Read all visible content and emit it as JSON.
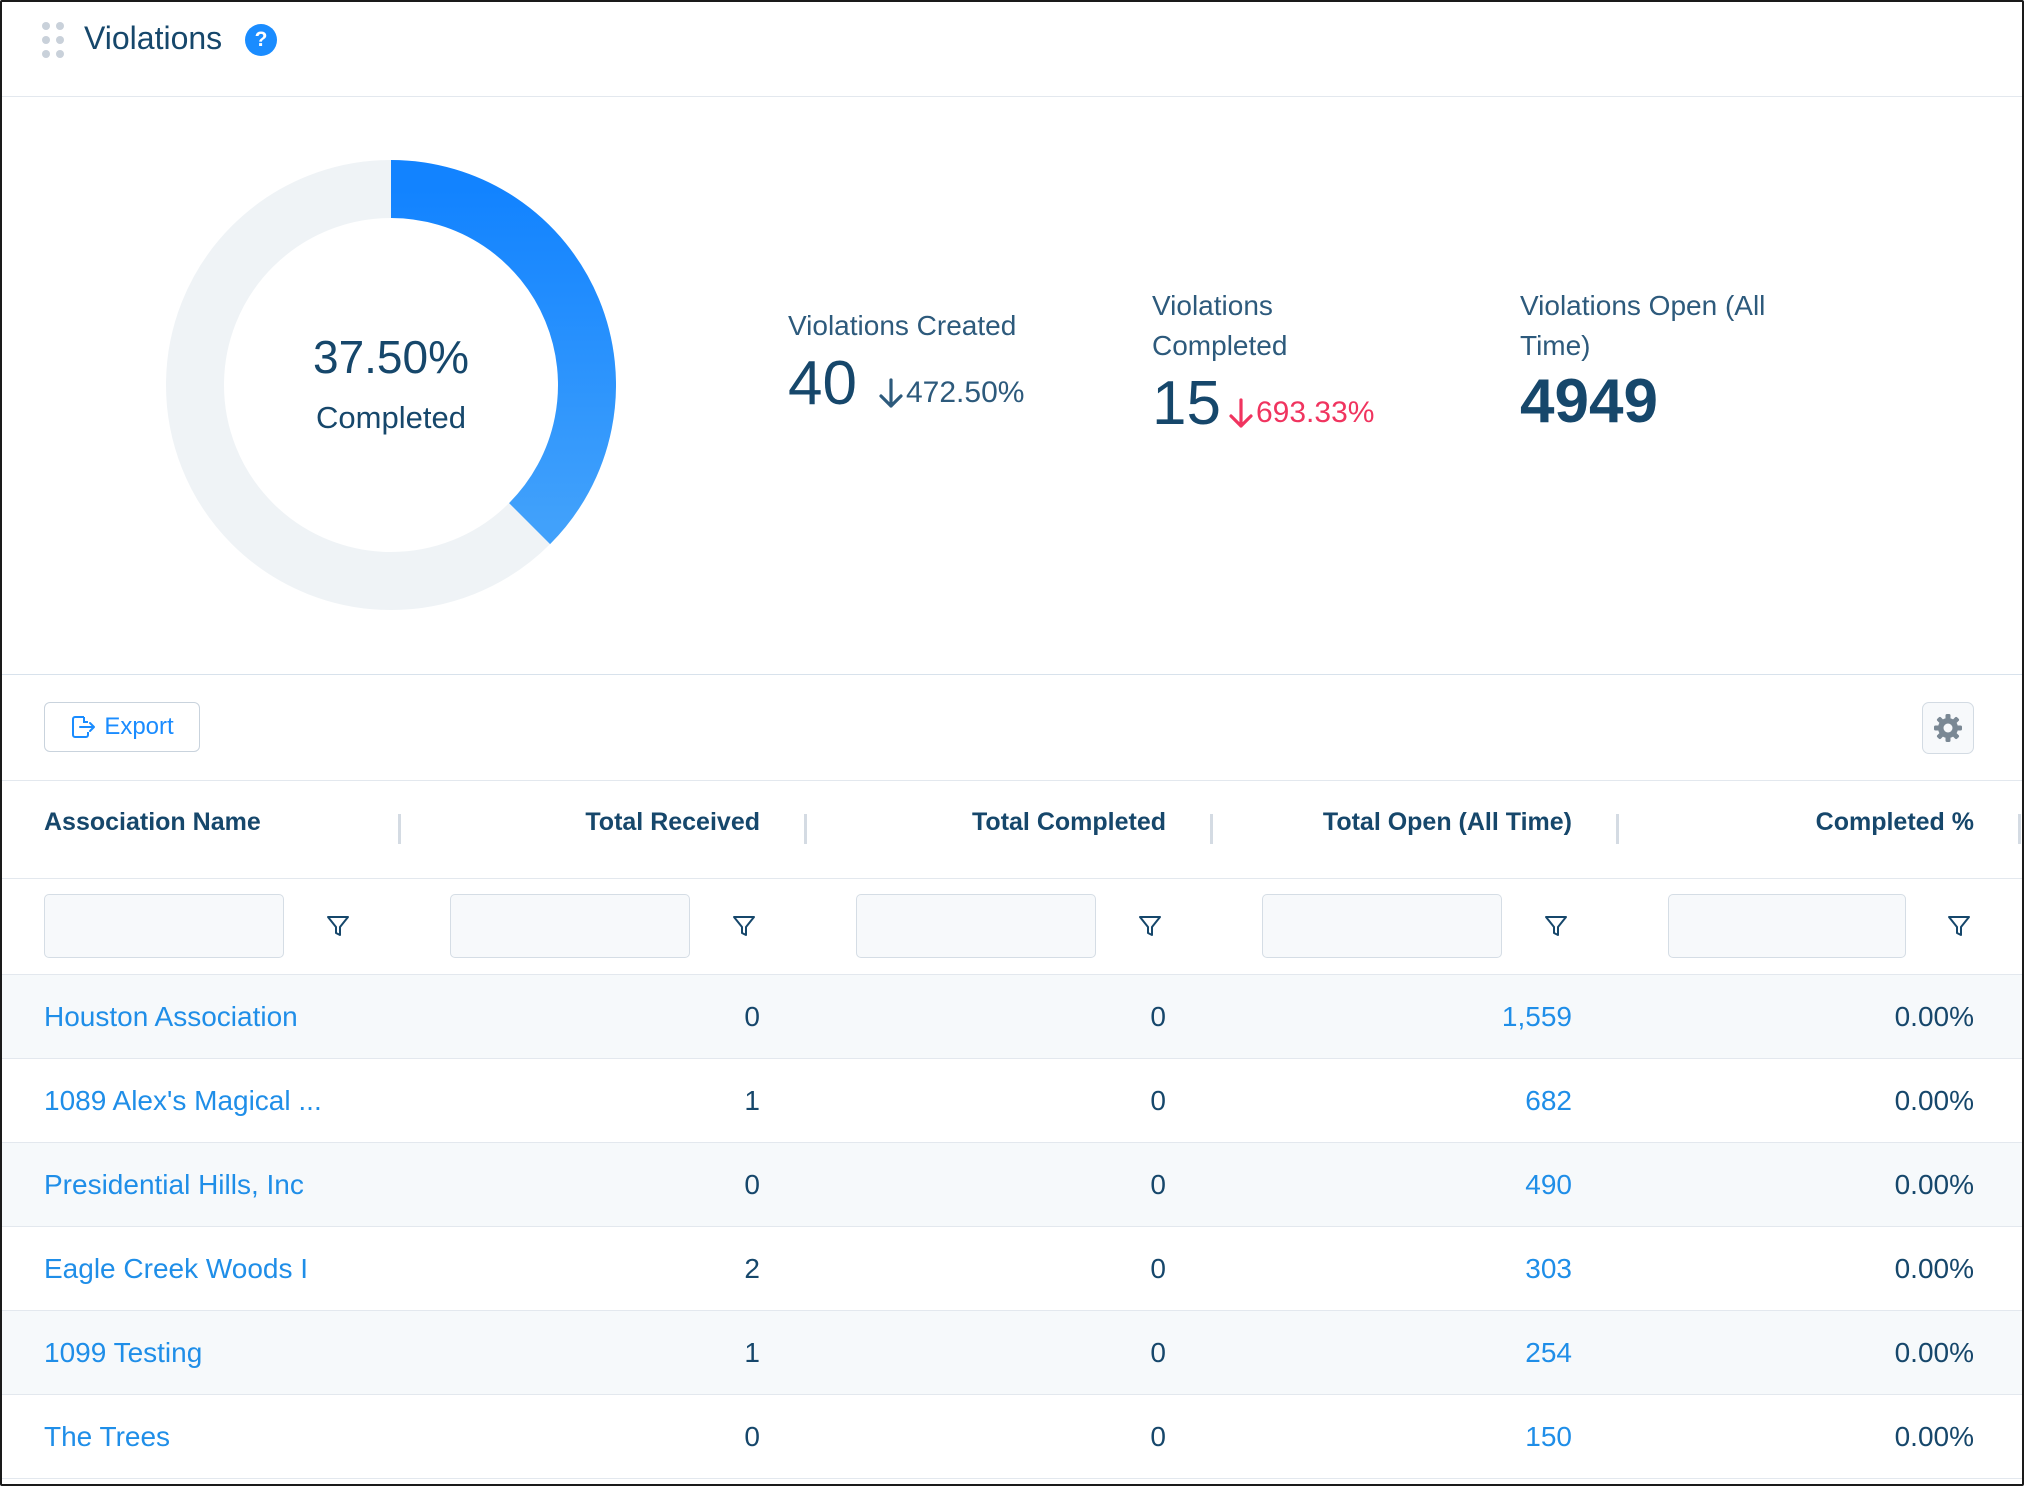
{
  "header": {
    "title": "Violations",
    "help_label": "?"
  },
  "summary": {
    "donut": {
      "percent_text": "37.50%",
      "label": "Completed",
      "fraction": 0.375,
      "color_filled_top": "#1283ff",
      "color_filled_bottom": "#41a1fb",
      "color_track": "#eff3f6"
    },
    "stats": [
      {
        "label_lines": [
          "Violations Created"
        ],
        "value": "40",
        "change": "472.50%",
        "change_direction": "down",
        "change_tone": "neutral"
      },
      {
        "label_lines": [
          "Violations",
          "Completed"
        ],
        "value": "15",
        "change": "693.33%",
        "change_direction": "down",
        "change_tone": "bad"
      },
      {
        "label_lines": [
          "Violations Open (All",
          "Time)"
        ],
        "value": "4949"
      }
    ],
    "colors": {
      "neutral": "#2d5a7c",
      "bad": "#f0345f"
    }
  },
  "toolbar": {
    "export_label": "Export",
    "settings_icon": "gear-icon",
    "export_icon": "export-icon"
  },
  "table": {
    "columns": [
      "Association Name",
      "Total Received",
      "Total Completed",
      "Total Open (All Time)",
      "Completed %"
    ],
    "filter_icon": "filter-icon",
    "rows": [
      [
        "Houston Association",
        "0",
        "0",
        "1,559",
        "0.00%"
      ],
      [
        "1089 Alex's Magical ...",
        "1",
        "0",
        "682",
        "0.00%"
      ],
      [
        "Presidential Hills, Inc",
        "0",
        "0",
        "490",
        "0.00%"
      ],
      [
        "Eagle Creek Woods I",
        "2",
        "0",
        "303",
        "0.00%"
      ],
      [
        "1099 Testing",
        "1",
        "0",
        "254",
        "0.00%"
      ],
      [
        "The Trees",
        "0",
        "0",
        "150",
        "0.00%"
      ]
    ],
    "link_color": "#1f8ee8"
  }
}
